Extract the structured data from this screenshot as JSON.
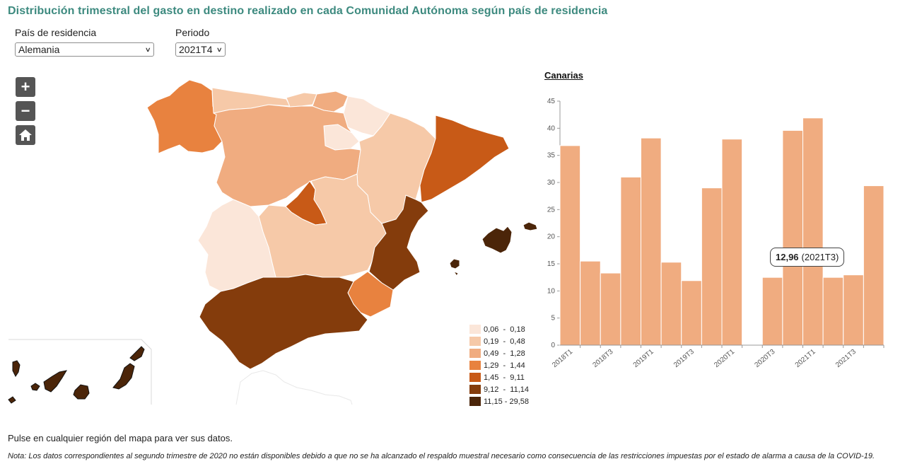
{
  "title": "Distribución trimestral del gasto en destino realizado en cada Comunidad Autónoma según país de residencia",
  "controls": {
    "country_label": "País de residencia",
    "country_value": "Alemania",
    "period_label": "Periodo",
    "period_value": "2021T4"
  },
  "map_controls": {
    "zoom_in": "+",
    "zoom_out": "−",
    "home_icon": "home-icon"
  },
  "colors": {
    "c1": "#fbe6d9",
    "c2": "#f6c9a8",
    "c3": "#f0ac80",
    "c4": "#e8823f",
    "c5": "#c85a17",
    "c6": "#843c0c",
    "c7": "#4b2509",
    "bar": "#f0ac80"
  },
  "legend": [
    {
      "label": "0,06  -  0,18",
      "color": "#fbe6d9"
    },
    {
      "label": "0,19  -  0,48",
      "color": "#f6c9a8"
    },
    {
      "label": "0,49  -  1,28",
      "color": "#f0ac80"
    },
    {
      "label": "1,29  -  1,44",
      "color": "#e8823f"
    },
    {
      "label": "1,45  -  9,11",
      "color": "#c85a17"
    },
    {
      "label": "9,12  -  11,14",
      "color": "#843c0c"
    },
    {
      "label": "11,15 - 29,58",
      "color": "#4b2509"
    }
  ],
  "chart_title": "Canarias",
  "tooltip": {
    "value": "12,96",
    "period": "(2021T3)"
  },
  "chart_data": {
    "type": "bar",
    "title": "Canarias",
    "categories": [
      "2018T1",
      "2018T2",
      "2018T3",
      "2018T4",
      "2019T1",
      "2019T2",
      "2019T3",
      "2019T4",
      "2020T1",
      "2020T2",
      "2020T3",
      "2020T4",
      "2021T1",
      "2021T2",
      "2021T3",
      "2021T4"
    ],
    "tick_labels": [
      "2018T1",
      "2018T3",
      "2019T1",
      "2019T3",
      "2020T1",
      "2020T3",
      "2021T1",
      "2021T3"
    ],
    "values": [
      36.8,
      15.5,
      13.3,
      31.0,
      38.2,
      15.3,
      11.9,
      29.0,
      38.0,
      null,
      12.5,
      39.6,
      41.9,
      12.5,
      12.96,
      29.4
    ],
    "ylim": [
      0,
      45
    ],
    "yticks": [
      0,
      5,
      10,
      15,
      20,
      25,
      30,
      35,
      40,
      45
    ],
    "xlabel": "",
    "ylabel": "",
    "grid": false
  },
  "footer": {
    "hint": "Pulse en cualquier región del mapa para ver sus datos.",
    "note": "Nota: Los datos correspondientes al segundo trimestre de 2020 no están disponibles debido a que no se ha alcanzado el respaldo muestral necesario como consecuencia de las restricciones impuestas por el estado de alarma a causa de la COVID-19."
  }
}
